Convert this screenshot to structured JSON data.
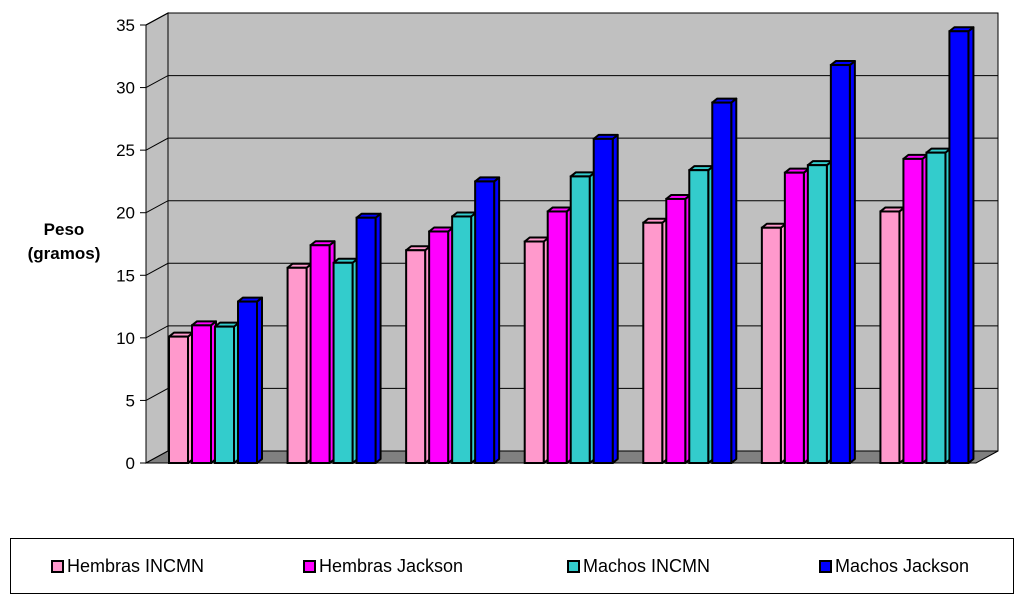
{
  "chart_data": {
    "type": "bar",
    "title": "",
    "ylabel": [
      "Peso",
      "(gramos)"
    ],
    "xlabel": "",
    "ylim": [
      0,
      35
    ],
    "yticks": [
      0,
      5,
      10,
      15,
      20,
      25,
      30,
      35
    ],
    "categories": [
      "",
      "",
      "",
      "",
      "",
      "",
      ""
    ],
    "series": [
      {
        "name": "Hembras INCMN",
        "color": "#ff99cc",
        "values": [
          10.1,
          15.6,
          17.0,
          17.7,
          19.2,
          18.8,
          20.1
        ]
      },
      {
        "name": "Hembras Jackson",
        "color": "#ff00ff",
        "values": [
          11.0,
          17.4,
          18.5,
          20.1,
          21.1,
          23.2,
          24.3
        ]
      },
      {
        "name": "Machos INCMN",
        "color": "#33cccc",
        "values": [
          10.9,
          16.0,
          19.7,
          22.9,
          23.4,
          23.8,
          24.8
        ]
      },
      {
        "name": "Machos Jackson",
        "color": "#0000ff",
        "values": [
          12.9,
          19.6,
          22.5,
          25.9,
          28.8,
          31.8,
          34.5
        ]
      }
    ],
    "grid": true,
    "legend_position": "bottom",
    "plot_background": "#c0c0c0",
    "floor_color": "#808080"
  }
}
